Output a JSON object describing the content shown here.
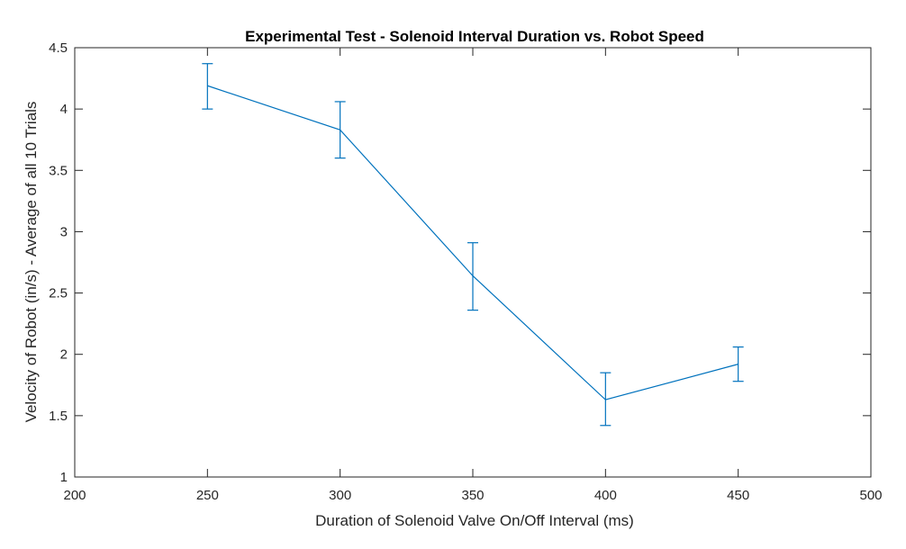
{
  "chart_data": {
    "type": "line",
    "title": "Experimental Test - Solenoid Interval Duration vs. Robot Speed",
    "xlabel": "Duration of Solenoid Valve On/Off Interval (ms)",
    "ylabel": "Velocity of Robot (in/s) - Average of all 10 Trials",
    "xlim": [
      200,
      500
    ],
    "ylim": [
      1,
      4.5
    ],
    "xticks": [
      200,
      250,
      300,
      350,
      400,
      450,
      500
    ],
    "yticks": [
      1,
      1.5,
      2,
      2.5,
      3,
      3.5,
      4,
      4.5
    ],
    "xtick_labels": [
      "200",
      "250",
      "300",
      "350",
      "400",
      "450",
      "500"
    ],
    "ytick_labels": [
      "1",
      "1.5",
      "2",
      "2.5",
      "3",
      "3.5",
      "4",
      "4.5"
    ],
    "grid": false,
    "series": [
      {
        "color": "#0072BD",
        "x": [
          250,
          300,
          350,
          400,
          450
        ],
        "y": [
          4.19,
          3.83,
          2.64,
          1.63,
          1.92
        ],
        "err_low": [
          4.0,
          3.6,
          2.36,
          1.42,
          1.78
        ],
        "err_high": [
          4.37,
          4.06,
          2.91,
          1.85,
          2.06
        ]
      }
    ]
  }
}
